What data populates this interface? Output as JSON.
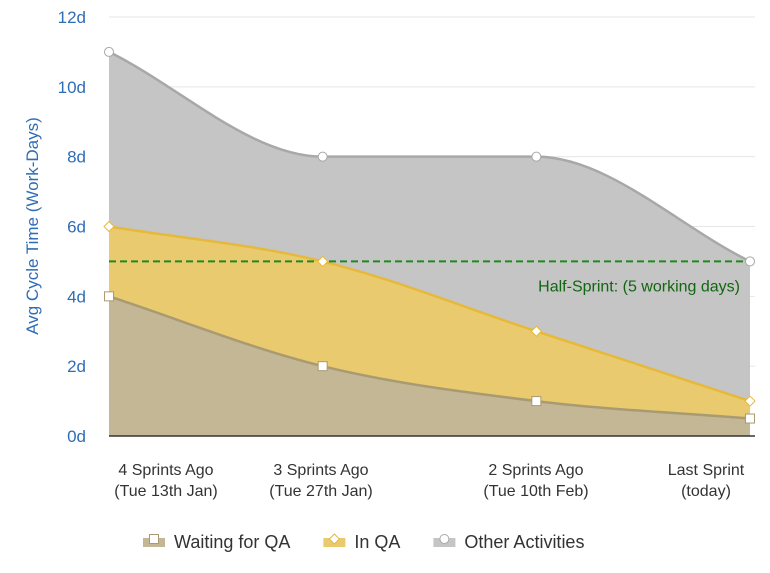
{
  "chart_data": {
    "type": "area",
    "stacked": true,
    "ylabel": "Avg Cycle Time (Work-Days)",
    "ylim": [
      0,
      12
    ],
    "yticks": [
      "0d",
      "2d",
      "4d",
      "6d",
      "8d",
      "10d",
      "12d"
    ],
    "grid": true,
    "legend_placement": "bottom",
    "categories": [
      [
        "4 Sprints Ago",
        "(Tue 13th Jan)"
      ],
      [
        "3 Sprints Ago",
        "(Tue 27th Jan)"
      ],
      [
        "2 Sprints Ago",
        "(Tue 10th Feb)"
      ],
      [
        "Last Sprint",
        "(today)"
      ]
    ],
    "series": [
      {
        "name": "Waiting for QA",
        "values": [
          4,
          2,
          1,
          0.5
        ],
        "fill": "#c4b795",
        "line": "#a99a72",
        "marker": "square"
      },
      {
        "name": "In QA",
        "values": [
          2,
          3,
          2,
          0.5
        ],
        "fill": "#e9ca6e",
        "line": "#e6b93a",
        "marker": "diamond"
      },
      {
        "name": "Other Activities",
        "values": [
          5,
          3,
          5,
          4
        ],
        "fill": "#c5c5c5",
        "line": "#a8a8a8",
        "marker": "circle"
      }
    ],
    "threshold": {
      "value": 5,
      "label": "Half-Sprint: (5 working days)",
      "color": "#1e8a1e"
    },
    "axis_label_color": "#2f6db5"
  }
}
